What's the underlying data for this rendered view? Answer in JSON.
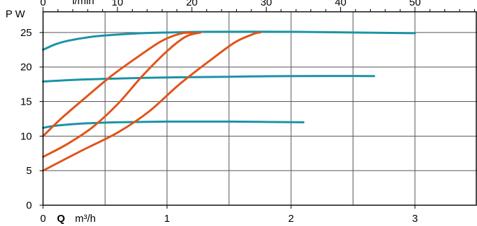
{
  "chart_data": {
    "type": "line",
    "y_axis": {
      "label": "P W",
      "range": [
        0,
        28
      ],
      "ticks": [
        0,
        5,
        10,
        15,
        20,
        25
      ]
    },
    "x_axis_bottom": {
      "symbol": "Q",
      "unit": "m³/h",
      "range": [
        0,
        3.5
      ],
      "ticks": [
        0,
        1,
        2,
        3
      ],
      "tick_labels": [
        "0",
        "1",
        "2",
        "3"
      ]
    },
    "x_axis_top": {
      "unit_text": "l/min",
      "ticks": [
        0,
        10,
        20,
        30,
        40,
        50
      ],
      "tick_labels": [
        "0",
        "10",
        "20",
        "30",
        "40",
        "50"
      ]
    },
    "grid": true,
    "colors": {
      "teal": "#1a93a6",
      "orange": "#e0541a"
    },
    "series": [
      {
        "color": "teal",
        "points": [
          [
            0,
            22.5
          ],
          [
            0.1,
            23.3
          ],
          [
            0.2,
            23.8
          ],
          [
            0.4,
            24.4
          ],
          [
            0.6,
            24.7
          ],
          [
            0.8,
            24.9
          ],
          [
            1.0,
            25.0
          ],
          [
            1.3,
            25.1
          ],
          [
            2.0,
            25.1
          ],
          [
            2.5,
            25.0
          ],
          [
            3.0,
            24.9
          ]
        ]
      },
      {
        "color": "teal",
        "points": [
          [
            0,
            17.9
          ],
          [
            0.2,
            18.1
          ],
          [
            0.5,
            18.3
          ],
          [
            1.0,
            18.5
          ],
          [
            1.5,
            18.6
          ],
          [
            2.0,
            18.7
          ],
          [
            2.67,
            18.7
          ]
        ]
      },
      {
        "color": "teal",
        "points": [
          [
            0,
            11.2
          ],
          [
            0.1,
            11.5
          ],
          [
            0.3,
            11.8
          ],
          [
            0.6,
            12.0
          ],
          [
            1.0,
            12.1
          ],
          [
            1.5,
            12.1
          ],
          [
            2.1,
            12.0
          ]
        ]
      },
      {
        "color": "orange",
        "points": [
          [
            0,
            10.0
          ],
          [
            0.15,
            12.6
          ],
          [
            0.35,
            15.7
          ],
          [
            0.55,
            18.7
          ],
          [
            0.75,
            21.3
          ],
          [
            0.95,
            23.7
          ],
          [
            1.1,
            24.8
          ],
          [
            1.2,
            25.0
          ]
        ]
      },
      {
        "color": "orange",
        "points": [
          [
            0,
            7.0
          ],
          [
            0.2,
            8.9
          ],
          [
            0.4,
            11.3
          ],
          [
            0.6,
            14.6
          ],
          [
            0.8,
            18.7
          ],
          [
            1.0,
            22.3
          ],
          [
            1.15,
            24.4
          ],
          [
            1.27,
            25.0
          ]
        ]
      },
      {
        "color": "orange",
        "points": [
          [
            0,
            5.0
          ],
          [
            0.3,
            7.8
          ],
          [
            0.6,
            10.5
          ],
          [
            0.85,
            13.5
          ],
          [
            1.1,
            17.5
          ],
          [
            1.35,
            21.0
          ],
          [
            1.55,
            23.6
          ],
          [
            1.7,
            24.8
          ],
          [
            1.75,
            25.0
          ]
        ]
      }
    ]
  }
}
